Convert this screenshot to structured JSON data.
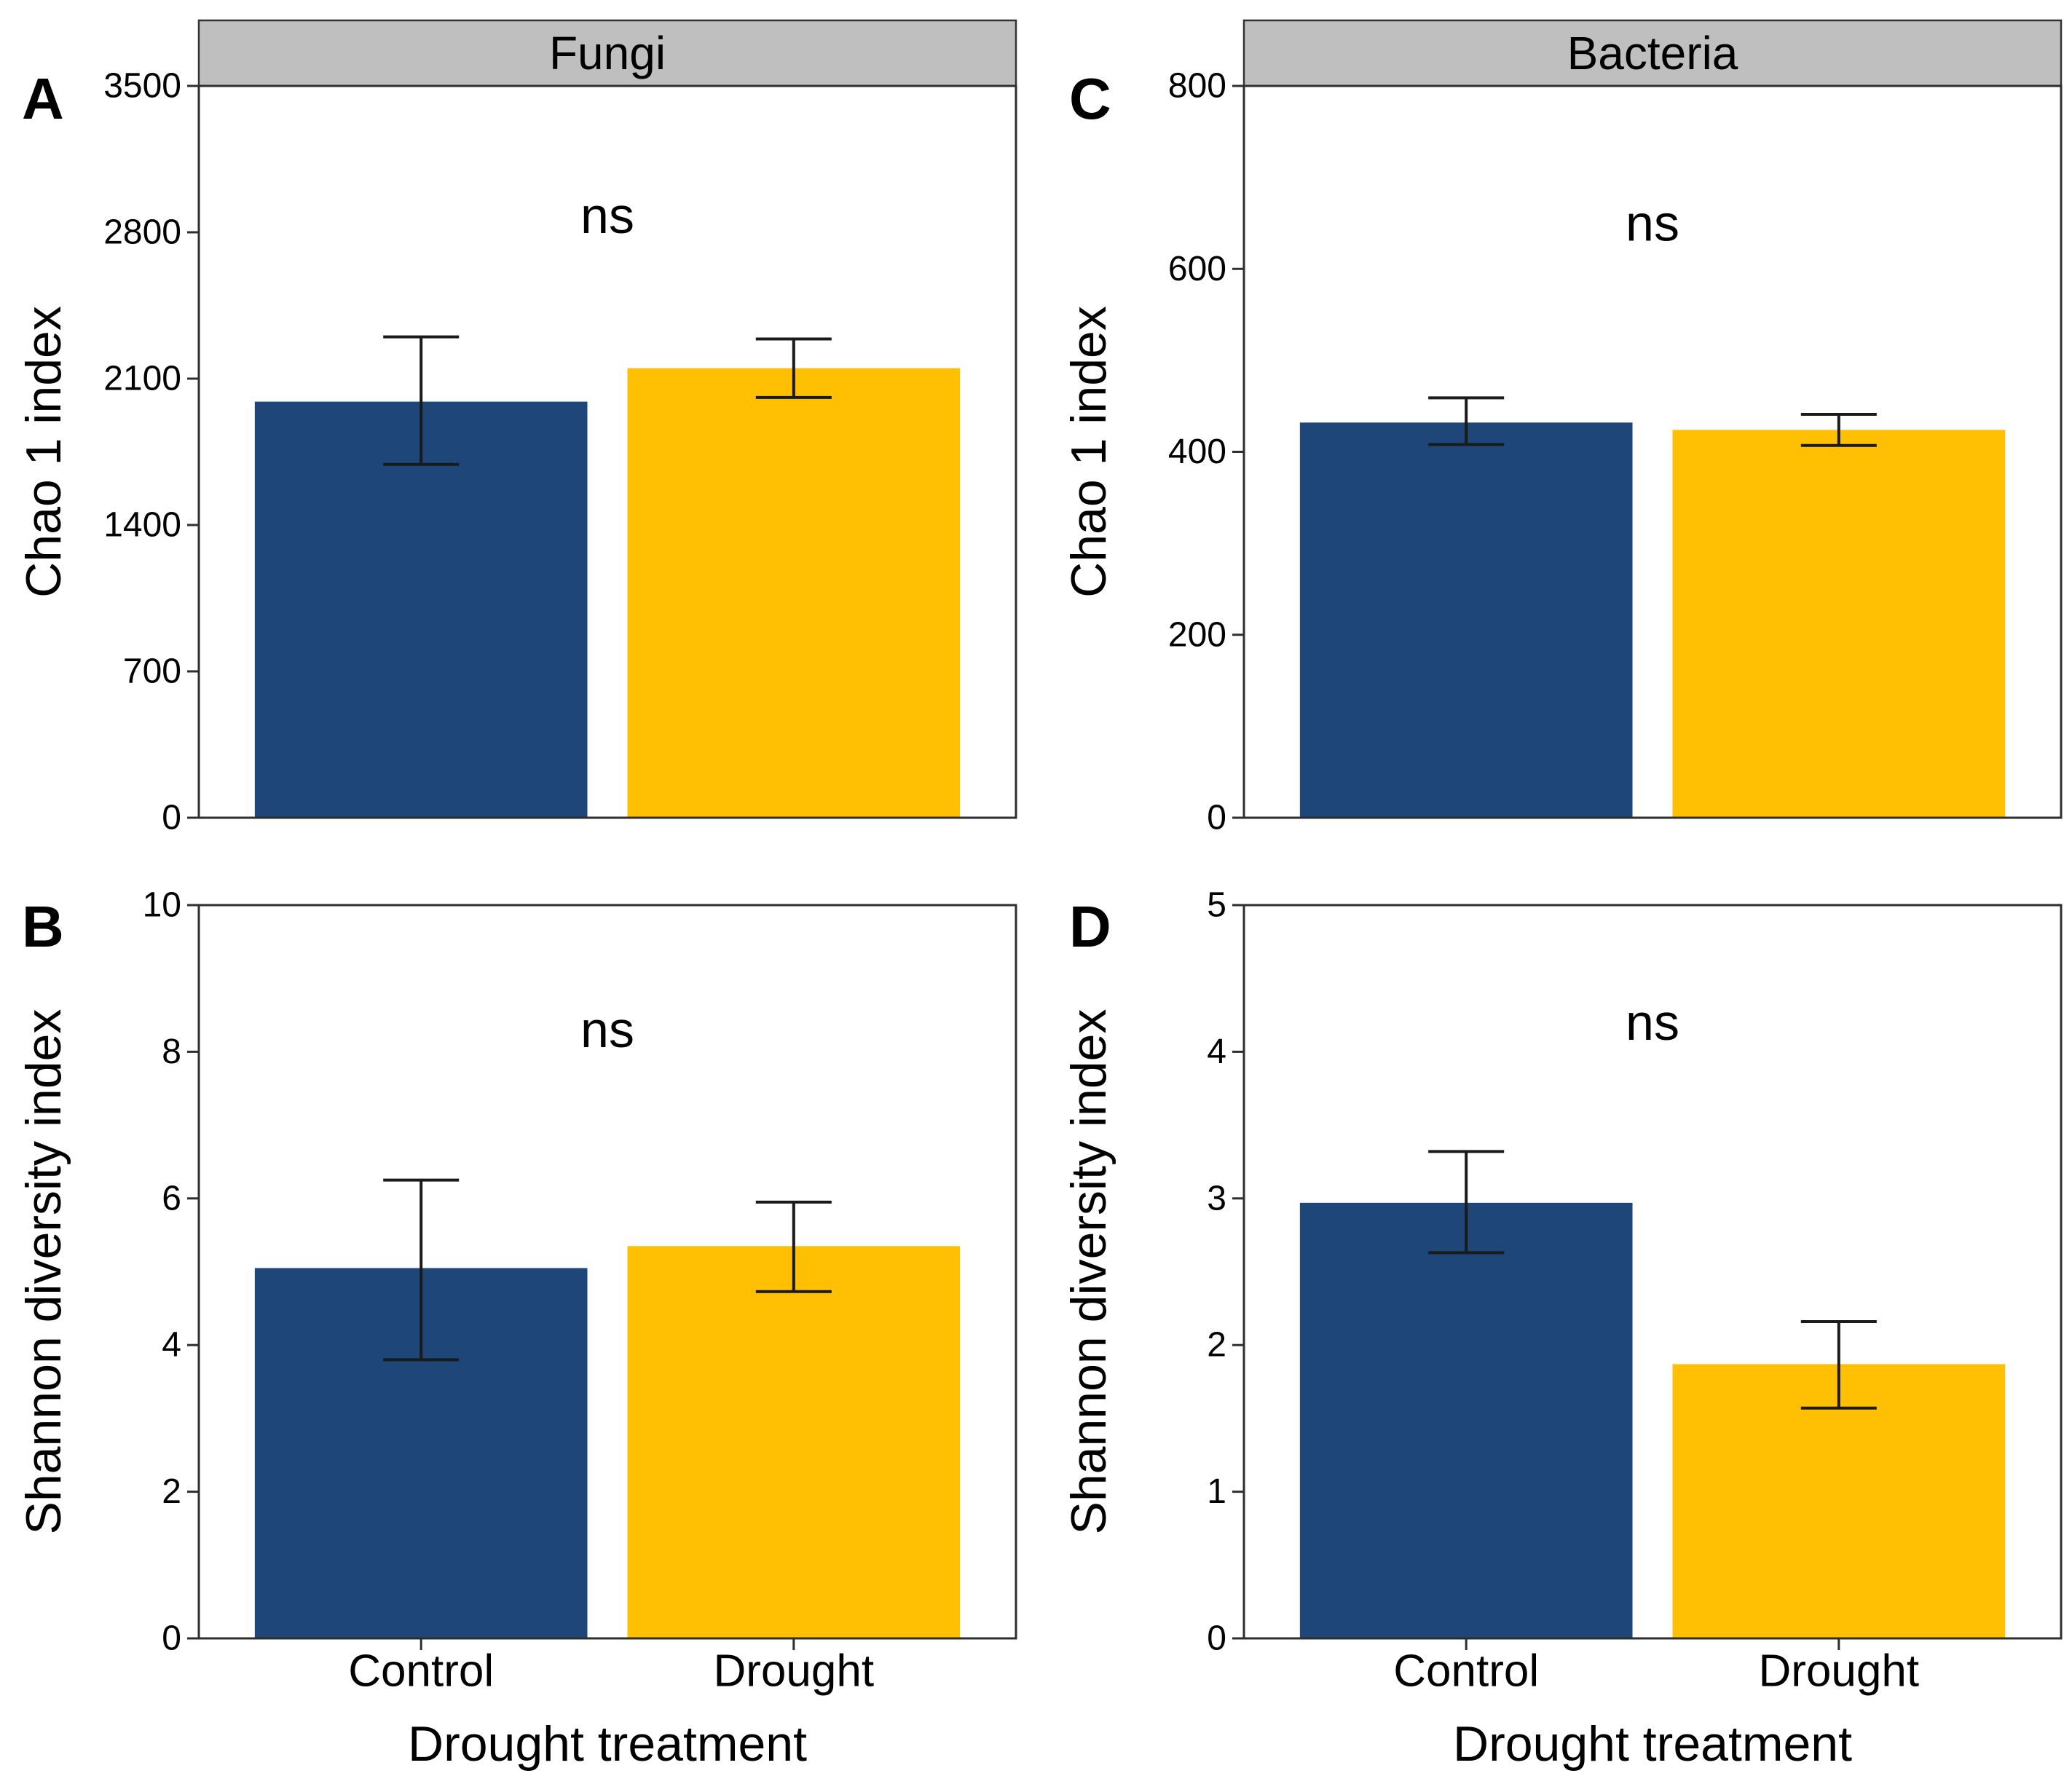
{
  "colors": {
    "control_bar": "#1F4679",
    "drought_bar": "#FFC003",
    "facet_strip_bg": "#BFBFBF",
    "facet_strip_border": "#333333",
    "plot_border": "#2E2E2E",
    "error_bar": "#1A1A1A",
    "text": "#000000"
  },
  "chart_data": [
    {
      "panel_label": "A",
      "facet_title": "Fungi",
      "type": "bar",
      "ylabel": "Chao 1 index",
      "xlabel": null,
      "categories": [
        "Control",
        "Drought"
      ],
      "values": [
        1990,
        2150
      ],
      "error_low": [
        1690,
        2010
      ],
      "error_high": [
        2300,
        2290
      ],
      "annotation": {
        "text": "ns",
        "y": 2880
      },
      "ylim": [
        0,
        3500
      ],
      "yticks": [
        0,
        700,
        1400,
        2100,
        2800,
        3500
      ],
      "legend": "none",
      "grid": "off"
    },
    {
      "panel_label": "C",
      "facet_title": "Bacteria",
      "type": "bar",
      "ylabel": "Chao 1 index",
      "xlabel": null,
      "categories": [
        "Control",
        "Drought"
      ],
      "values": [
        432,
        424
      ],
      "error_low": [
        408,
        407
      ],
      "error_high": [
        459,
        441
      ],
      "annotation": {
        "text": "ns",
        "y": 650
      },
      "ylim": [
        0,
        800
      ],
      "yticks": [
        0,
        200,
        400,
        600,
        800
      ],
      "legend": "none",
      "grid": "off"
    },
    {
      "panel_label": "B",
      "facet_title": null,
      "type": "bar",
      "ylabel": "Shannon diversity index",
      "xlabel": "Drought treatment",
      "categories": [
        "Control",
        "Drought"
      ],
      "values": [
        5.05,
        5.35
      ],
      "error_low": [
        3.8,
        4.73
      ],
      "error_high": [
        6.25,
        5.95
      ],
      "annotation": {
        "text": "ns",
        "y": 8.3
      },
      "ylim": [
        0,
        10
      ],
      "yticks": [
        0,
        2,
        4,
        6,
        8,
        10
      ],
      "legend": "none",
      "grid": "off"
    },
    {
      "panel_label": "D",
      "facet_title": null,
      "type": "bar",
      "ylabel": "Shannon diversity index",
      "xlabel": "Drought treatment",
      "categories": [
        "Control",
        "Drought"
      ],
      "values": [
        2.97,
        1.87
      ],
      "error_low": [
        2.63,
        1.57
      ],
      "error_high": [
        3.32,
        2.16
      ],
      "annotation": {
        "text": "ns",
        "y": 4.2
      },
      "ylim": [
        0,
        5
      ],
      "yticks": [
        0,
        1,
        2,
        3,
        4,
        5
      ],
      "legend": "none",
      "grid": "off"
    }
  ]
}
